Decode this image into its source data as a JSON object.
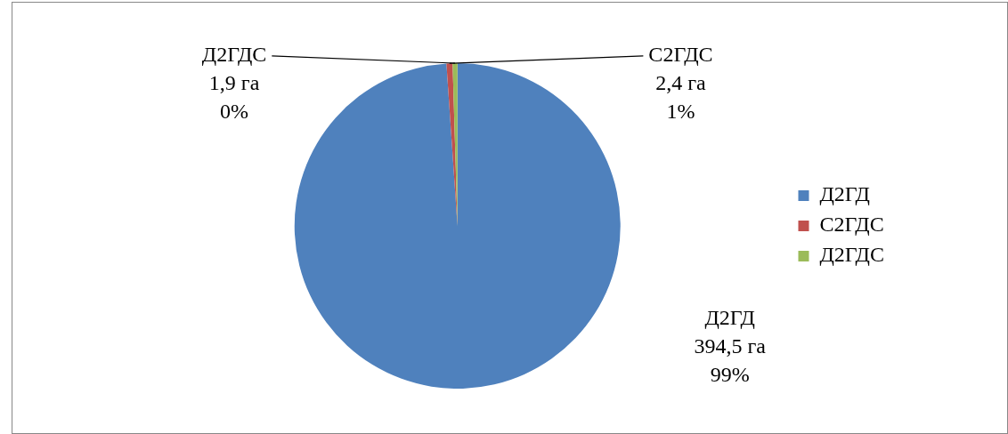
{
  "chart_data": {
    "type": "pie",
    "categories": [
      "Д2ГД",
      "С2ГДС",
      "Д2ГДС"
    ],
    "values": [
      394.5,
      2.4,
      1.9
    ],
    "colors": [
      "#4f81bd",
      "#c0504d",
      "#9bbb59"
    ],
    "value_labels": [
      "394,5 га\n99%",
      "2,4 га\n1%",
      "1,9 га\n0%"
    ],
    "legend": "right"
  }
}
